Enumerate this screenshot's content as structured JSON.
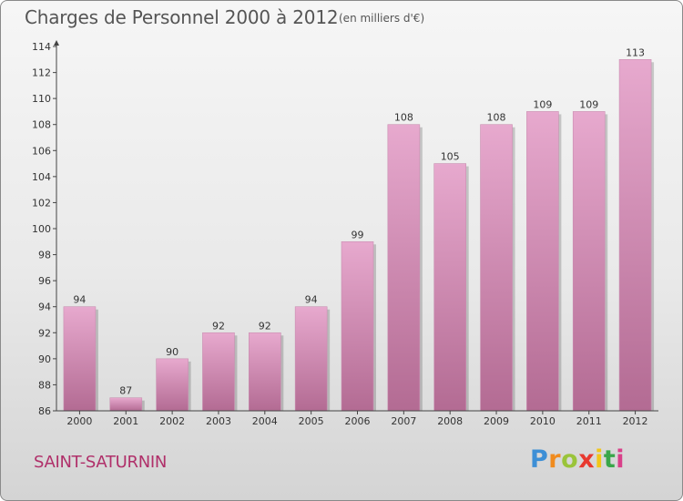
{
  "header": {
    "title": "Charges de Personnel 2000 à 2012",
    "subtitle": "(en milliers d'€)"
  },
  "footer": {
    "city": "SAINT-SATURNIN",
    "logo_text": "Proxiti"
  },
  "colors": {
    "bar_top": "#e7a9ce",
    "bar_bottom": "#b36b93",
    "city": "#b0306a"
  },
  "chart_data": {
    "type": "bar",
    "title": "Charges de Personnel 2000 à 2012",
    "subtitle": "(en milliers d'€)",
    "xlabel": "",
    "ylabel": "",
    "categories": [
      "2000",
      "2001",
      "2002",
      "2003",
      "2004",
      "2005",
      "2006",
      "2007",
      "2008",
      "2009",
      "2010",
      "2011",
      "2012"
    ],
    "values": [
      94,
      87,
      90,
      92,
      92,
      94,
      99,
      108,
      105,
      108,
      109,
      109,
      113
    ],
    "ylim": [
      86,
      114
    ],
    "yticks": [
      86,
      88,
      90,
      92,
      94,
      96,
      98,
      100,
      102,
      104,
      106,
      108,
      110,
      112,
      114
    ],
    "grid": false
  }
}
